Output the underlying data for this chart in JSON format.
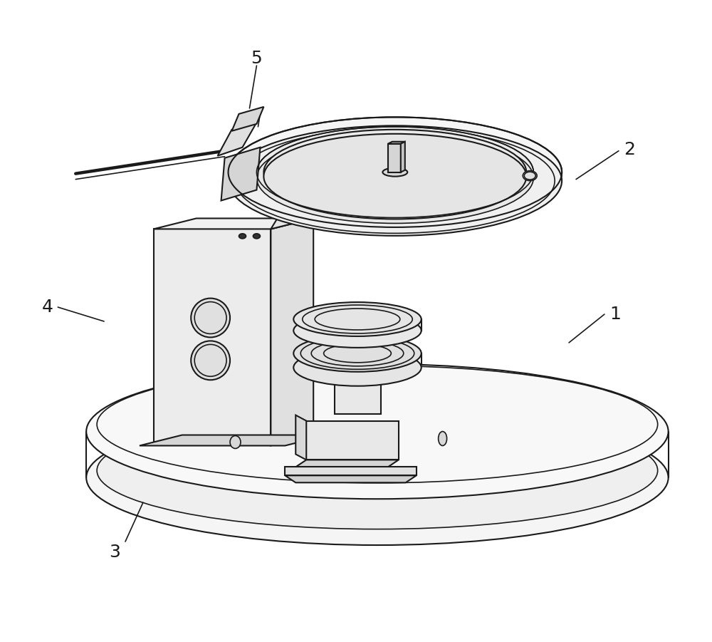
{
  "bg_color": "#ffffff",
  "line_color": "#1a1a1a",
  "line_width": 1.2,
  "fig_width": 10.0,
  "fig_height": 9.01,
  "labels": {
    "1": [
      0.82,
      0.42,
      "1"
    ],
    "2": [
      0.88,
      0.82,
      "2"
    ],
    "3": [
      0.18,
      0.12,
      "3"
    ],
    "4": [
      0.08,
      0.45,
      "4"
    ],
    "5": [
      0.38,
      0.94,
      "5"
    ]
  },
  "label_fontsize": 18
}
